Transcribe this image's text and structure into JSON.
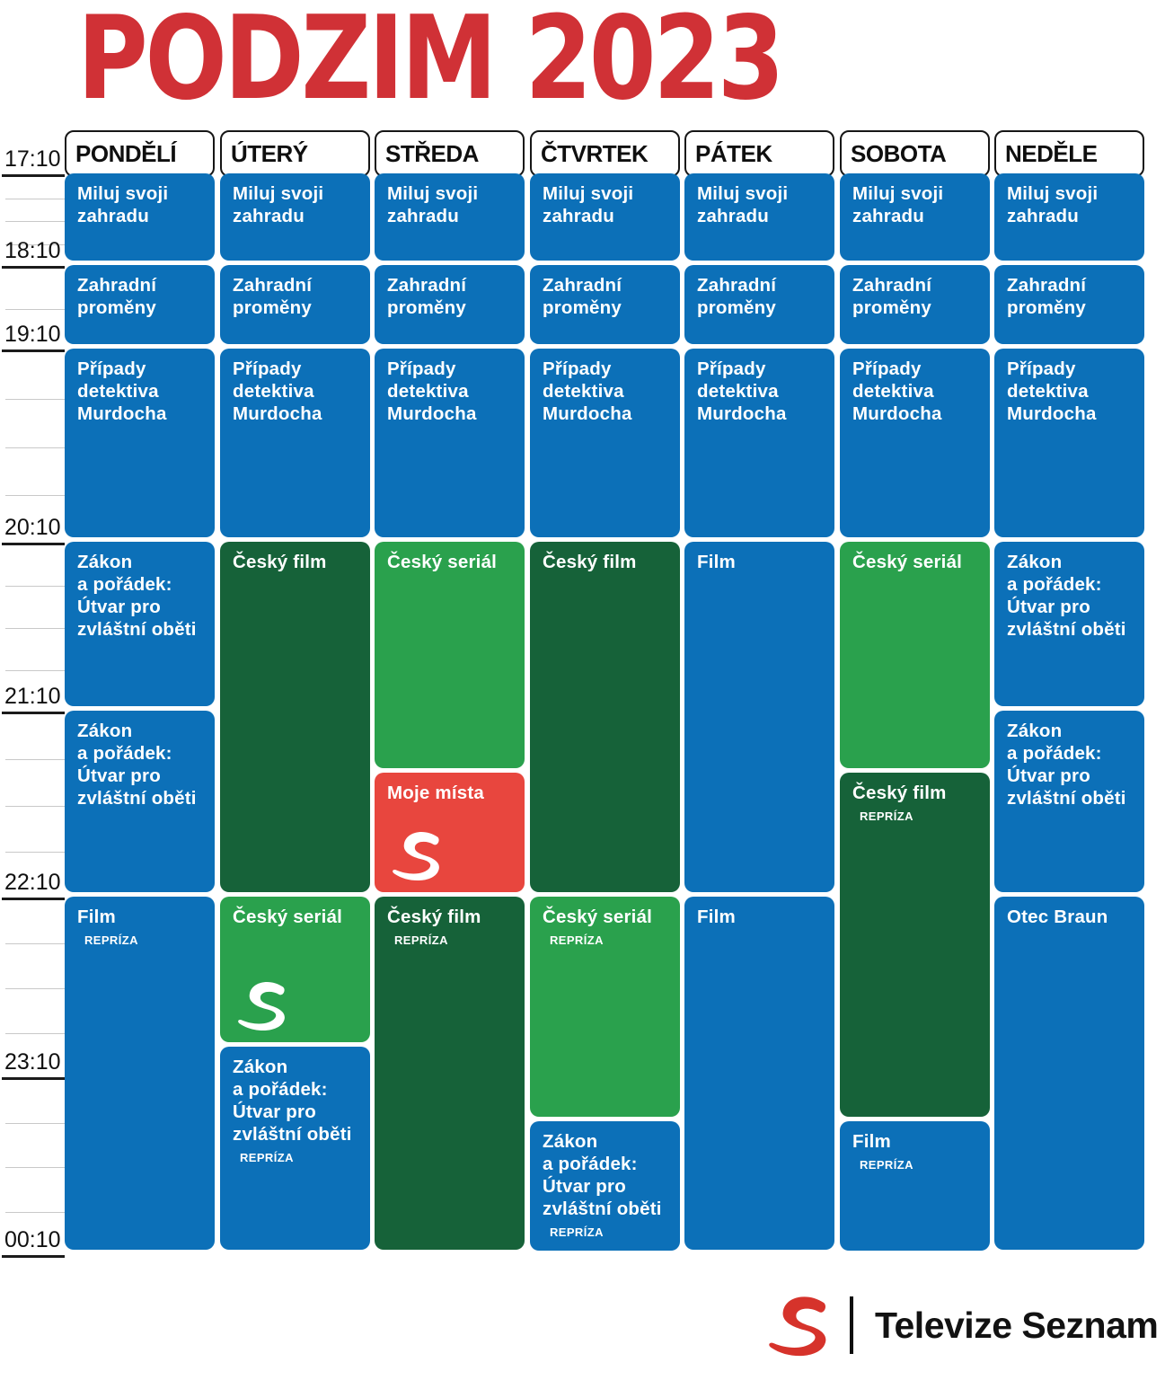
{
  "title": {
    "text": "PODZIM 2023",
    "color": "#d03136"
  },
  "days": [
    "PONDĚLÍ",
    "ÚTERÝ",
    "STŘEDA",
    "ČTVRTEK",
    "PÁTEK",
    "SOBOTA",
    "NEDĚLE"
  ],
  "times": [
    "17:10",
    "18:10",
    "19:10",
    "20:10",
    "21:10",
    "22:10",
    "23:10",
    "00:10"
  ],
  "colors": {
    "block_blue": "#0c70b8",
    "block_dark_green": "#166239",
    "block_light_green": "#2aa14d",
    "block_red": "#e8463e",
    "title_red": "#d03136",
    "logo_red": "#d6332b"
  },
  "badge_label": "REPRÍZA",
  "schedule": {
    "blocks": [
      {
        "day": 0,
        "start": "17:10",
        "end": "18:10",
        "title": "Miluj svoji\nzahradu",
        "badge": "",
        "color": "blue",
        "logo": false
      },
      {
        "day": 1,
        "start": "17:10",
        "end": "18:10",
        "title": "Miluj svoji\nzahradu",
        "badge": "",
        "color": "blue",
        "logo": false
      },
      {
        "day": 2,
        "start": "17:10",
        "end": "18:10",
        "title": "Miluj svoji\nzahradu",
        "badge": "",
        "color": "blue",
        "logo": false
      },
      {
        "day": 3,
        "start": "17:10",
        "end": "18:10",
        "title": "Miluj svoji\nzahradu",
        "badge": "",
        "color": "blue",
        "logo": false
      },
      {
        "day": 4,
        "start": "17:10",
        "end": "18:10",
        "title": "Miluj svoji\nzahradu",
        "badge": "",
        "color": "blue",
        "logo": false
      },
      {
        "day": 5,
        "start": "17:10",
        "end": "18:10",
        "title": "Miluj svoji\nzahradu",
        "badge": "",
        "color": "blue",
        "logo": false
      },
      {
        "day": 6,
        "start": "17:10",
        "end": "18:10",
        "title": "Miluj svoji\nzahradu",
        "badge": "",
        "color": "blue",
        "logo": false
      },
      {
        "day": 0,
        "start": "18:10",
        "end": "19:10",
        "title": "Zahradní\nproměny",
        "badge": "",
        "color": "blue",
        "logo": false
      },
      {
        "day": 1,
        "start": "18:10",
        "end": "19:10",
        "title": "Zahradní\nproměny",
        "badge": "",
        "color": "blue",
        "logo": false
      },
      {
        "day": 2,
        "start": "18:10",
        "end": "19:10",
        "title": "Zahradní\nproměny",
        "badge": "",
        "color": "blue",
        "logo": false
      },
      {
        "day": 3,
        "start": "18:10",
        "end": "19:10",
        "title": "Zahradní\nproměny",
        "badge": "",
        "color": "blue",
        "logo": false
      },
      {
        "day": 4,
        "start": "18:10",
        "end": "19:10",
        "title": "Zahradní\nproměny",
        "badge": "",
        "color": "blue",
        "logo": false
      },
      {
        "day": 5,
        "start": "18:10",
        "end": "19:10",
        "title": "Zahradní\nproměny",
        "badge": "",
        "color": "blue",
        "logo": false
      },
      {
        "day": 6,
        "start": "18:10",
        "end": "19:10",
        "title": "Zahradní\nproměny",
        "badge": "",
        "color": "blue",
        "logo": false
      },
      {
        "day": 0,
        "start": "19:10",
        "end": "20:10",
        "title": "Případy\ndetektiva\nMurdocha",
        "badge": "",
        "color": "blue",
        "logo": false
      },
      {
        "day": 1,
        "start": "19:10",
        "end": "20:10",
        "title": "Případy\ndetektiva\nMurdocha",
        "badge": "",
        "color": "blue",
        "logo": false
      },
      {
        "day": 2,
        "start": "19:10",
        "end": "20:10",
        "title": "Případy\ndetektiva\nMurdocha",
        "badge": "",
        "color": "blue",
        "logo": false
      },
      {
        "day": 3,
        "start": "19:10",
        "end": "20:10",
        "title": "Případy\ndetektiva\nMurdocha",
        "badge": "",
        "color": "blue",
        "logo": false
      },
      {
        "day": 4,
        "start": "19:10",
        "end": "20:10",
        "title": "Případy\ndetektiva\nMurdocha",
        "badge": "",
        "color": "blue",
        "logo": false
      },
      {
        "day": 5,
        "start": "19:10",
        "end": "20:10",
        "title": "Případy\ndetektiva\nMurdocha",
        "badge": "",
        "color": "blue",
        "logo": false
      },
      {
        "day": 6,
        "start": "19:10",
        "end": "20:10",
        "title": "Případy\ndetektiva\nMurdocha",
        "badge": "",
        "color": "blue",
        "logo": false
      },
      {
        "day": 0,
        "start": "20:10",
        "end": "21:10",
        "title": "Zákon\na pořádek:\nÚtvar pro\nzvláštní oběti",
        "badge": "",
        "color": "blue",
        "logo": false
      },
      {
        "day": 0,
        "start": "21:10",
        "end": "22:10",
        "title": "Zákon\na pořádek:\nÚtvar pro\nzvláštní oběti",
        "badge": "",
        "color": "blue",
        "logo": false
      },
      {
        "day": 0,
        "start": "22:10",
        "end": "00:10",
        "title": "Film",
        "badge": "REPRÍZA",
        "color": "blue",
        "logo": false
      },
      {
        "day": 1,
        "start": "20:10",
        "end": "22:10",
        "title": "Český film",
        "badge": "",
        "color": "dark",
        "logo": false
      },
      {
        "day": 1,
        "start": "22:10",
        "end": "23:00",
        "title": "Český seriál",
        "badge": "",
        "color": "light",
        "logo": true
      },
      {
        "day": 1,
        "start": "23:00",
        "end": "00:10",
        "title": "Zákon\na pořádek:\nÚtvar pro\nzvláštní oběti",
        "badge": "REPRÍZA",
        "color": "blue",
        "logo": false
      },
      {
        "day": 2,
        "start": "20:10",
        "end": "21:30",
        "title": "Český seriál",
        "badge": "",
        "color": "light",
        "logo": false
      },
      {
        "day": 2,
        "start": "21:30",
        "end": "22:10",
        "title": "Moje místa",
        "badge": "",
        "color": "red",
        "logo": true
      },
      {
        "day": 2,
        "start": "22:10",
        "end": "00:10",
        "title": "Český film",
        "badge": "REPRÍZA",
        "color": "dark",
        "logo": false
      },
      {
        "day": 3,
        "start": "20:10",
        "end": "22:10",
        "title": "Český film",
        "badge": "",
        "color": "dark",
        "logo": false
      },
      {
        "day": 3,
        "start": "22:10",
        "end": "23:25",
        "title": "Český seriál",
        "badge": "REPRÍZA",
        "color": "light",
        "logo": false
      },
      {
        "day": 3,
        "start": "23:25",
        "end": "00:10",
        "title": "Zákon\na pořádek:\nÚtvar pro\nzvláštní oběti",
        "badge": "REPRÍZA",
        "color": "blue",
        "logo": false
      },
      {
        "day": 4,
        "start": "20:10",
        "end": "22:10",
        "title": "Film",
        "badge": "",
        "color": "blue",
        "logo": false
      },
      {
        "day": 4,
        "start": "22:10",
        "end": "00:10",
        "title": "Film",
        "badge": "",
        "color": "blue",
        "logo": false
      },
      {
        "day": 5,
        "start": "20:10",
        "end": "21:30",
        "title": "Český seriál",
        "badge": "",
        "color": "light",
        "logo": false
      },
      {
        "day": 5,
        "start": "21:30",
        "end": "23:25",
        "title": "Český film",
        "badge": "REPRÍZA",
        "color": "dark",
        "logo": false
      },
      {
        "day": 5,
        "start": "23:25",
        "end": "00:10",
        "title": "Film",
        "badge": "REPRÍZA",
        "color": "blue",
        "logo": false
      },
      {
        "day": 6,
        "start": "20:10",
        "end": "21:10",
        "title": "Zákon\na pořádek:\nÚtvar pro\nzvláštní oběti",
        "badge": "",
        "color": "blue",
        "logo": false
      },
      {
        "day": 6,
        "start": "21:10",
        "end": "22:10",
        "title": "Zákon\na pořádek:\nÚtvar pro\nzvláštní oběti",
        "badge": "",
        "color": "blue",
        "logo": false
      },
      {
        "day": 6,
        "start": "22:10",
        "end": "00:10",
        "title": "Otec Braun",
        "badge": "",
        "color": "blue",
        "logo": false
      }
    ]
  },
  "footer": {
    "brand": "Televize Seznam",
    "logo": "seznam-s-swoosh"
  }
}
